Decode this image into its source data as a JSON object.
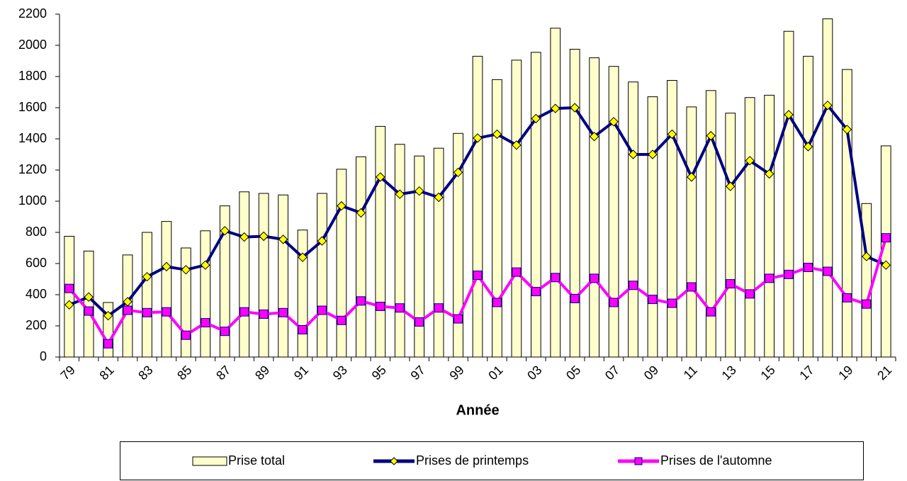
{
  "chart_data": {
    "type": "combo",
    "x_label": "Année",
    "categories": [
      "79",
      null,
      "81",
      null,
      "83",
      null,
      "85",
      null,
      "87",
      null,
      "89",
      null,
      "91",
      null,
      "93",
      null,
      "95",
      null,
      "97",
      null,
      "99",
      null,
      "01",
      null,
      "03",
      null,
      "05",
      null,
      "07",
      null,
      "09",
      null,
      "11",
      null,
      "13",
      null,
      "15",
      null,
      "17",
      null,
      "19",
      null,
      "21"
    ],
    "series": [
      {
        "name": "Prise total",
        "type": "bar",
        "color": "#ffffcc",
        "values": [
          775,
          680,
          350,
          655,
          800,
          870,
          700,
          810,
          970,
          1060,
          1050,
          1040,
          815,
          1050,
          1205,
          1285,
          1480,
          1365,
          1290,
          1340,
          1435,
          1930,
          1780,
          1905,
          1955,
          2110,
          1975,
          1920,
          1865,
          1765,
          1670,
          1775,
          1605,
          1710,
          1565,
          1665,
          1680,
          2090,
          1930,
          2170,
          1845,
          985,
          1355
        ]
      },
      {
        "name": "Prises de printemps",
        "type": "line",
        "color": "#000080",
        "marker": "diamond",
        "marker_color": "#ffff00",
        "values": [
          335,
          385,
          265,
          355,
          515,
          580,
          560,
          590,
          810,
          770,
          775,
          755,
          640,
          745,
          970,
          925,
          1155,
          1045,
          1065,
          1025,
          1185,
          1405,
          1430,
          1360,
          1530,
          1595,
          1600,
          1415,
          1510,
          1300,
          1300,
          1430,
          1155,
          1420,
          1095,
          1260,
          1175,
          1555,
          1350,
          1615,
          1460,
          645,
          590
        ]
      },
      {
        "name": "Prises de l'automne",
        "type": "line",
        "color": "#ff00ff",
        "marker": "square",
        "marker_color": "#ff00ff",
        "values": [
          440,
          295,
          85,
          300,
          285,
          290,
          140,
          220,
          165,
          290,
          275,
          285,
          175,
          300,
          235,
          360,
          325,
          315,
          225,
          315,
          245,
          525,
          350,
          545,
          420,
          510,
          375,
          505,
          350,
          460,
          370,
          345,
          450,
          290,
          470,
          405,
          505,
          530,
          575,
          550,
          380,
          340,
          765
        ]
      }
    ],
    "ylim": [
      0,
      2200
    ],
    "yticks": [
      0,
      200,
      400,
      600,
      800,
      1000,
      1200,
      1400,
      1600,
      1800,
      2000,
      2200
    ],
    "grid": false,
    "legend": "bottom"
  }
}
